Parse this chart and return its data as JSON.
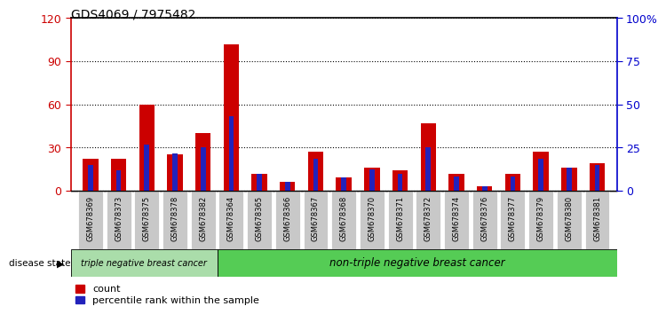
{
  "title": "GDS4069 / 7975482",
  "samples": [
    "GSM678369",
    "GSM678373",
    "GSM678375",
    "GSM678378",
    "GSM678382",
    "GSM678364",
    "GSM678365",
    "GSM678366",
    "GSM678367",
    "GSM678368",
    "GSM678370",
    "GSM678371",
    "GSM678372",
    "GSM678374",
    "GSM678376",
    "GSM678377",
    "GSM678379",
    "GSM678380",
    "GSM678381"
  ],
  "count_values": [
    22,
    22,
    60,
    25,
    40,
    102,
    12,
    6,
    27,
    9,
    16,
    14,
    47,
    12,
    3,
    12,
    27,
    16,
    19
  ],
  "percentile_values": [
    18,
    14,
    32,
    26,
    30,
    52,
    12,
    6,
    22,
    9,
    15,
    12,
    30,
    10,
    3,
    10,
    22,
    16,
    18
  ],
  "group1_count": 5,
  "group1_label": "triple negative breast cancer",
  "group2_label": "non-triple negative breast cancer",
  "group1_color": "#aaddaa",
  "group2_color": "#55cc55",
  "left_ylim": [
    0,
    120
  ],
  "right_ylim": [
    0,
    100
  ],
  "left_yticks": [
    0,
    30,
    60,
    90,
    120
  ],
  "right_yticks": [
    0,
    25,
    50,
    75,
    100
  ],
  "right_yticklabels": [
    "0",
    "25",
    "50",
    "75",
    "100%"
  ],
  "left_ycolor": "#cc0000",
  "right_ycolor": "#0000cc",
  "count_color": "#cc0000",
  "percentile_color": "#2222bb",
  "tick_label_bg": "#c8c8c8",
  "disease_state_label": "disease state",
  "legend_count": "count",
  "legend_percentile": "percentile rank within the sample"
}
